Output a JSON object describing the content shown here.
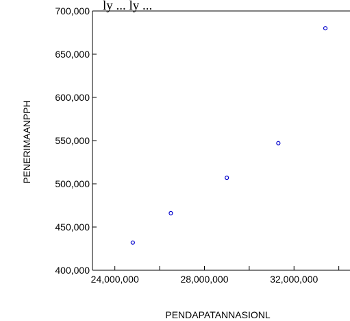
{
  "header_fragment": "ly ... ly ...",
  "colors": {
    "marker": "#0000cc",
    "axis": "#000000"
  },
  "chart_data": {
    "type": "scatter",
    "xlabel": "PENDAPATANNASIONL",
    "ylabel": "PENERIMAANPPH",
    "xlim": [
      23000000,
      34500000
    ],
    "ylim": [
      400000,
      700000
    ],
    "x_ticks": [
      24000000,
      28000000,
      32000000
    ],
    "x_tick_labels": [
      "24,000,000",
      "28,000,000",
      "32,000,000"
    ],
    "y_ticks": [
      400000,
      450000,
      500000,
      550000,
      600000,
      650000,
      700000
    ],
    "y_tick_labels": [
      "400,000",
      "450,000",
      "500,000",
      "550,000",
      "600,000",
      "650,000",
      "700,000"
    ],
    "grid": false,
    "marker": "hollow-circle",
    "points": [
      {
        "x": 24800000,
        "y": 432000
      },
      {
        "x": 26500000,
        "y": 466000
      },
      {
        "x": 29000000,
        "y": 507000
      },
      {
        "x": 31300000,
        "y": 547000
      },
      {
        "x": 33400000,
        "y": 680000
      }
    ]
  }
}
